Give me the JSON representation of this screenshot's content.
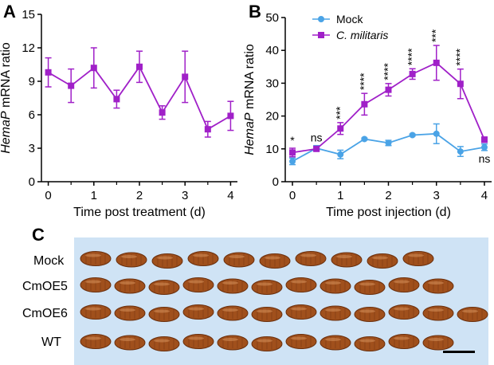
{
  "chart_data": [
    {
      "panel": "A",
      "type": "line",
      "x": [
        0,
        0.5,
        1,
        1.5,
        2,
        2.5,
        3,
        3.5,
        4
      ],
      "series": [
        {
          "name": "",
          "color": "#a020c8",
          "values": [
            9.8,
            8.6,
            10.2,
            7.4,
            10.3,
            6.2,
            9.4,
            4.7,
            5.9
          ],
          "errors": [
            1.3,
            1.5,
            1.8,
            0.8,
            1.4,
            0.6,
            2.3,
            0.7,
            1.3
          ]
        }
      ],
      "xlabel": "Time post treatment (d)",
      "ylabel_italic": "HemaP",
      "ylabel_rest": " mRNA ratio",
      "xticks": [
        "0",
        "1",
        "2",
        "3",
        "4"
      ],
      "yticks": [
        "0",
        "3",
        "6",
        "9",
        "12",
        "15"
      ],
      "xlim": [
        -0.15,
        4.15
      ],
      "ylim": [
        0,
        15
      ]
    },
    {
      "panel": "B",
      "type": "line",
      "x": [
        0,
        0.5,
        1,
        1.5,
        2,
        2.5,
        3,
        3.5,
        4
      ],
      "series": [
        {
          "name": "Mock",
          "marker": "circle",
          "color": "#4aa3e6",
          "values": [
            6.2,
            10.2,
            8.3,
            13.0,
            11.8,
            14.2,
            14.6,
            9.2,
            10.5
          ],
          "errors": [
            1.0,
            0.8,
            1.3,
            0.3,
            0.8,
            0.3,
            3.0,
            1.5,
            1.0
          ]
        },
        {
          "name": "C. militaris",
          "marker": "square",
          "color": "#a020c8",
          "values": [
            8.9,
            10.0,
            16.2,
            23.6,
            28.0,
            32.8,
            36.2,
            29.8,
            12.8
          ],
          "errors": [
            1.3,
            0.6,
            1.8,
            3.3,
            1.9,
            1.6,
            5.3,
            4.5,
            0.8
          ]
        }
      ],
      "significance": [
        {
          "x": 0,
          "label": "*"
        },
        {
          "x": 0.5,
          "label": "ns"
        },
        {
          "x": 1,
          "label": "***"
        },
        {
          "x": 1.5,
          "label": "****"
        },
        {
          "x": 2,
          "label": "****"
        },
        {
          "x": 2.5,
          "label": "****"
        },
        {
          "x": 3,
          "label": "***"
        },
        {
          "x": 3.5,
          "label": "****"
        },
        {
          "x": 4,
          "label": "ns"
        }
      ],
      "xlabel": "Time post injection (d)",
      "ylabel_italic": "HemaP",
      "ylabel_rest": " mRNA ratio",
      "xticks": [
        "0",
        "1",
        "2",
        "3",
        "4"
      ],
      "yticks": [
        "0",
        "10",
        "20",
        "30",
        "40",
        "50"
      ],
      "xlim": [
        -0.15,
        4.15
      ],
      "ylim": [
        0,
        50
      ],
      "legend_position": "top-left"
    }
  ],
  "panel_c": {
    "letter": "C",
    "background": "#cfe3f5",
    "pupa_color": "#a0501c",
    "rows": [
      {
        "label": "Mock",
        "count": 10
      },
      {
        "label": "CmOE5",
        "count": 11
      },
      {
        "label": "CmOE6",
        "count": 12
      },
      {
        "label": "WT",
        "count": 11
      }
    ]
  }
}
